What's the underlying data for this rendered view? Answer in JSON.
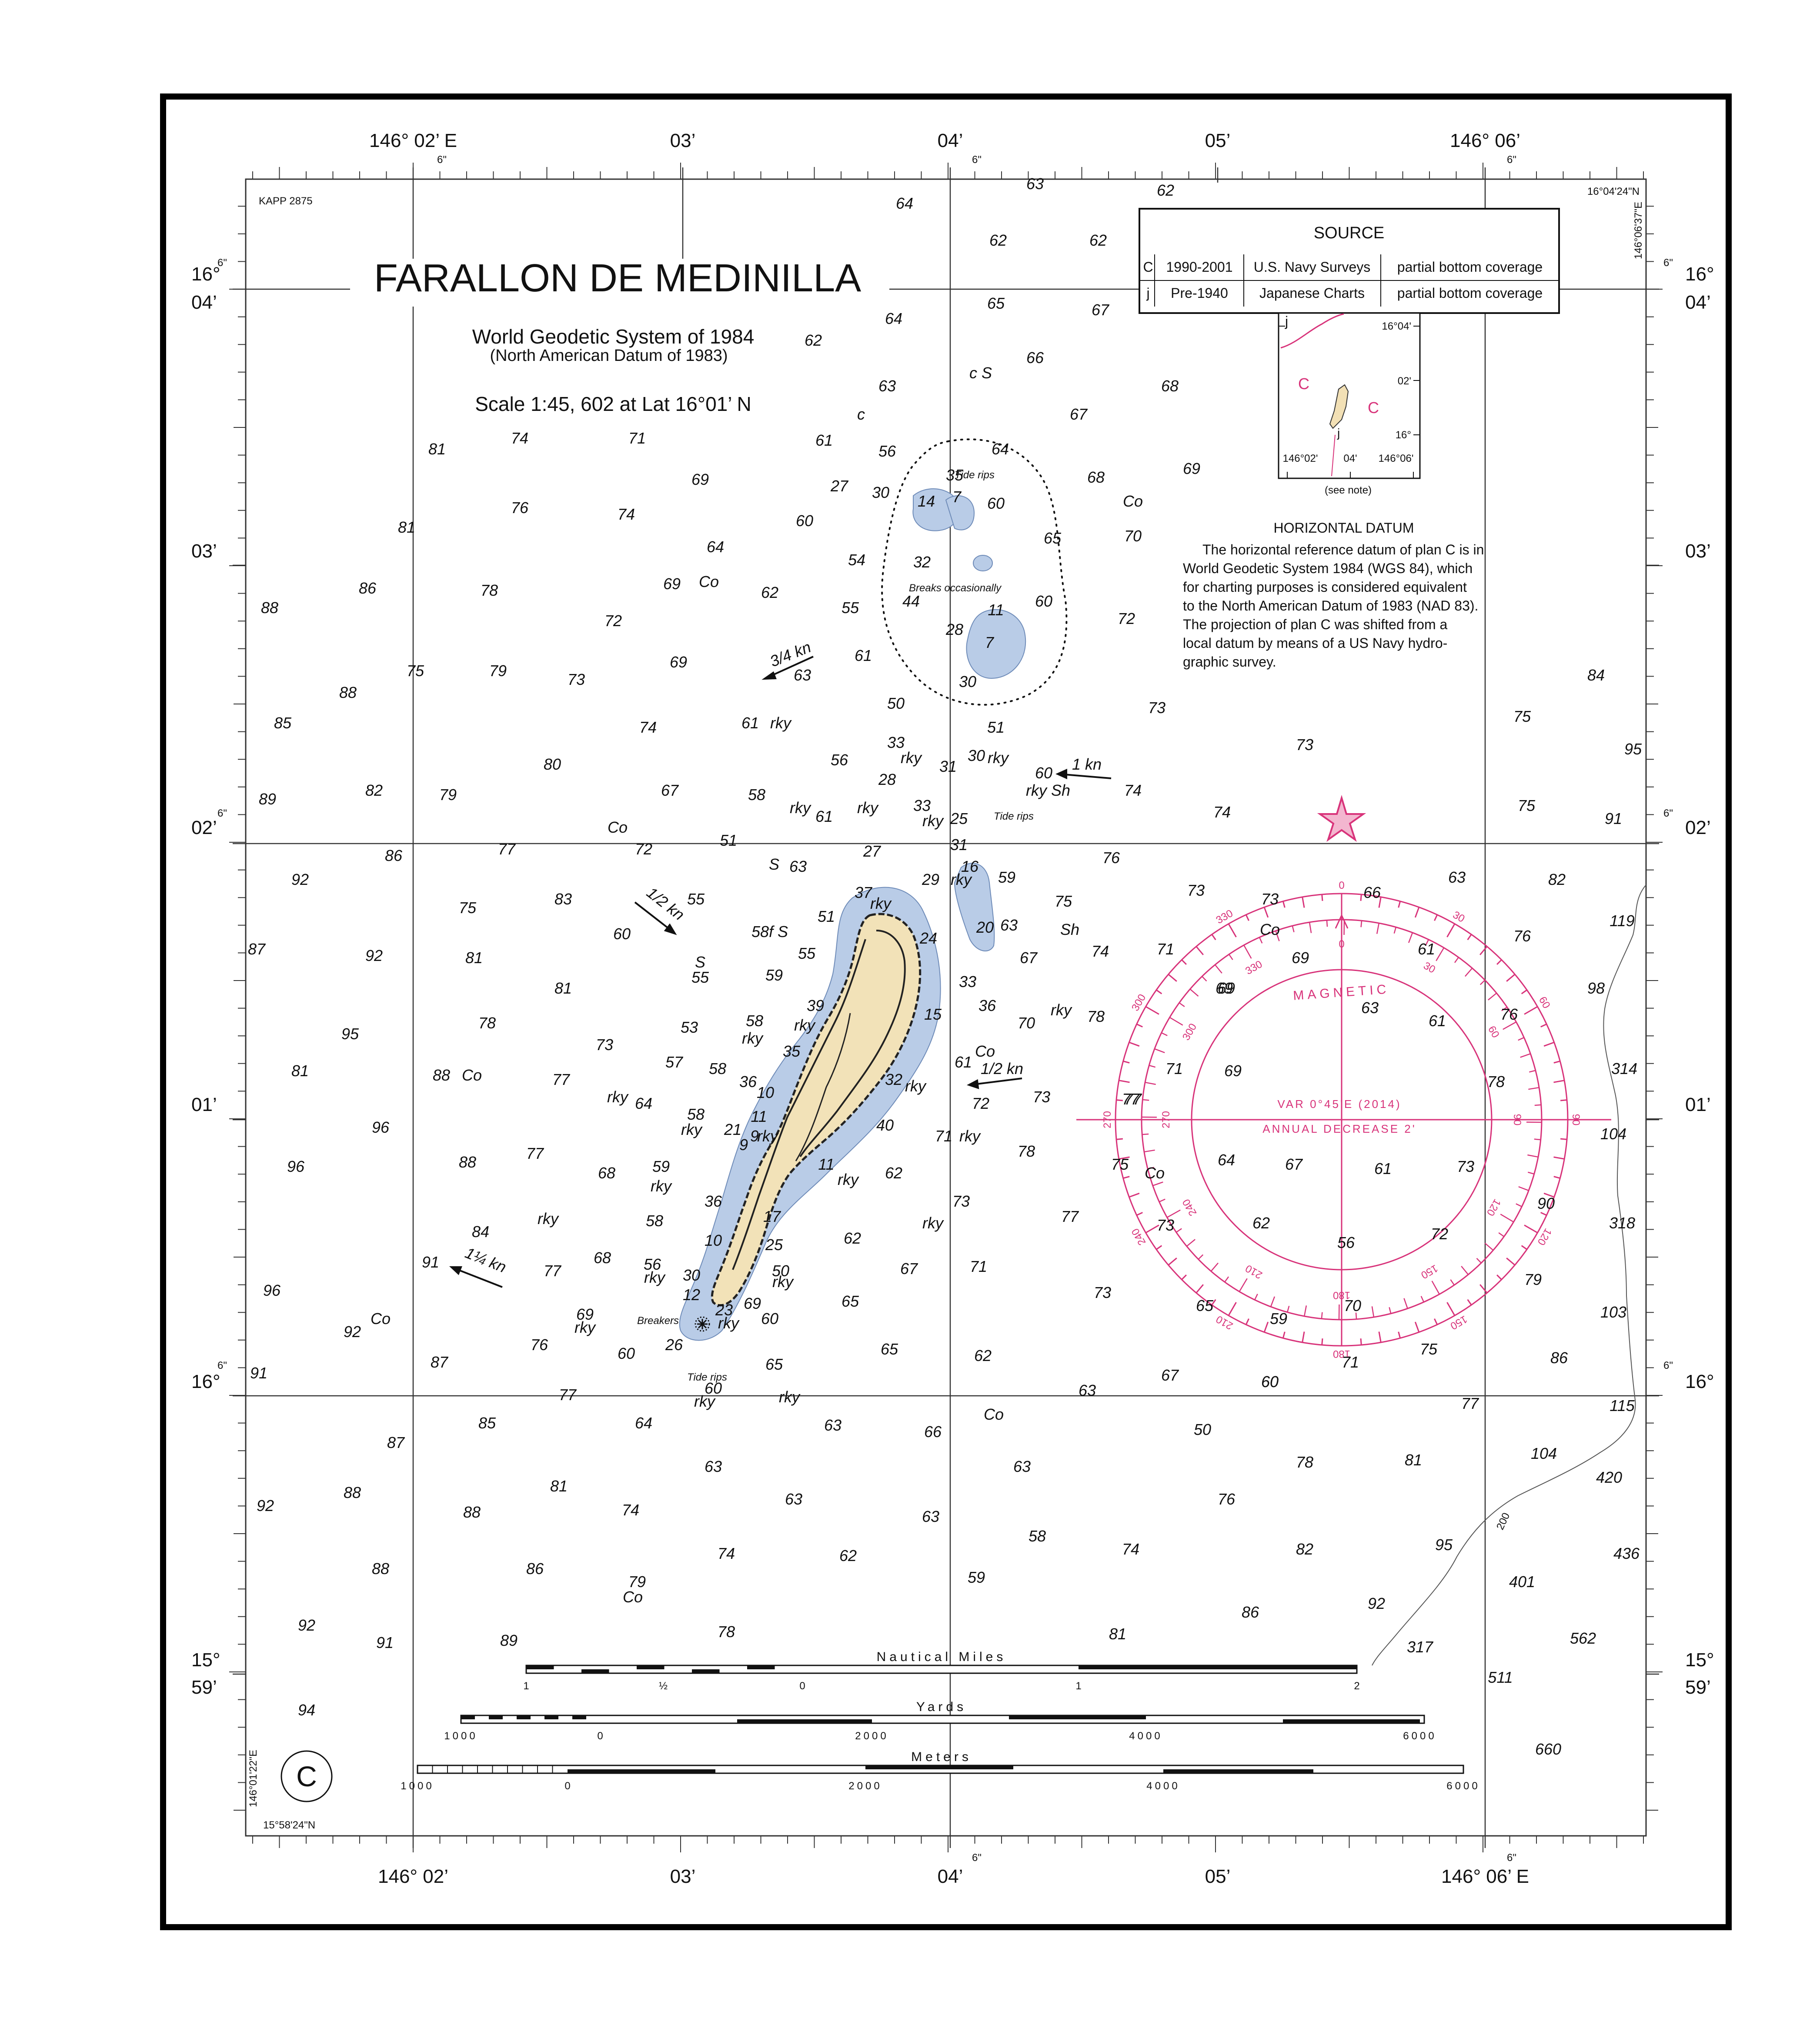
{
  "chart": {
    "code": "KAPP 2875",
    "title": "FARALLON DE MEDINILLA",
    "datum_line": "World Geodetic System of 1984",
    "datum_sub": "(North American Datum of 1983)",
    "scale": "Scale  1:45, 602 at Lat 16°01’ N",
    "plan_letter": "C",
    "corner_ne_lat": "16°04'24\"N",
    "corner_ne_lon": "146°06'37\"E",
    "corner_sw_lat": "15°58'24\"N",
    "corner_sw_lon": "146°01'22\"E"
  },
  "lon_top": [
    "146° 02’ E",
    "03’",
    "04’",
    "05’",
    "146° 06’"
  ],
  "lon_bottom": [
    "146° 02’",
    "03’",
    "04’",
    "05’",
    "146° 06’ E"
  ],
  "lat_left": [
    {
      "deg": "16°",
      "min": "04’"
    },
    {
      "deg": "",
      "min": "03’"
    },
    {
      "deg": "",
      "min": "02’"
    },
    {
      "deg": "",
      "min": "01’"
    },
    {
      "deg": "16°",
      "min": ""
    },
    {
      "deg": "15°",
      "min": "59’"
    }
  ],
  "lat_right": [
    {
      "deg": "16°",
      "min": "04’"
    },
    {
      "deg": "",
      "min": "03’"
    },
    {
      "deg": "",
      "min": "02’"
    },
    {
      "deg": "",
      "min": "01’"
    },
    {
      "deg": "16°",
      "min": ""
    },
    {
      "deg": "15°",
      "min": "59’"
    }
  ],
  "tick_six": "6\"",
  "source": {
    "title": "SOURCE",
    "rows": [
      {
        "code": "C",
        "date": "1990-2001",
        "agency": "U.S. Navy Surveys",
        "coverage": "partial bottom coverage"
      },
      {
        "code": "j",
        "date": "Pre-1940",
        "agency": "Japanese Charts",
        "coverage": "partial bottom coverage"
      }
    ],
    "inset": {
      "lat_labels": [
        "16°04'",
        "02'",
        "16°"
      ],
      "lon_labels": [
        "146°02'",
        "04'",
        "146°06'"
      ],
      "zone_labels": [
        "j",
        "C",
        "C",
        "j"
      ],
      "note": "(see note)"
    }
  },
  "horizontal_datum": {
    "title": "HORIZONTAL DATUM",
    "lines": [
      "The horizontal reference datum of plan C is in",
      "World Geodetic System 1984 (WGS 84), which",
      "for charting purposes is considered equivalent",
      "to the North American Datum of 1983  (NAD 83).",
      "The projection of plan C was shifted from a",
      "local datum by means of a US Navy hydro-",
      "graphic survey."
    ]
  },
  "compass": {
    "magnetic": "MAGNETIC",
    "variation": "VAR  0°45'E  (2014)",
    "annual": "ANNUAL DECREASE 2'"
  },
  "currents": [
    "3/4 kn",
    "1 kn",
    "1/2 kn",
    "1/2 kn",
    "1¼ kn"
  ],
  "annotations": [
    "Tide rips",
    "Breaks occasionally",
    "Tide rips",
    "Breakers",
    "Tide rips"
  ],
  "contour_label": "200",
  "scales": {
    "nautical_miles": {
      "title": "Nautical Miles",
      "labels": [
        "1",
        "½",
        "0",
        "1",
        "2"
      ]
    },
    "yards": {
      "title": "Yards",
      "labels": [
        "1000",
        "0",
        "2000",
        "4000",
        "6000"
      ]
    },
    "meters": {
      "title": "Meters",
      "labels": [
        "1000",
        "0",
        "2000",
        "4000",
        "6000"
      ]
    }
  },
  "soundings": [
    [
      "64",
      2080,
      480
    ],
    [
      "63",
      2380,
      435
    ],
    [
      "62",
      2680,
      450
    ],
    [
      "62",
      2295,
      565
    ],
    [
      "62",
      2525,
      565
    ],
    [
      "64",
      2055,
      745
    ],
    [
      "65",
      2290,
      710
    ],
    [
      "67",
      2530,
      725
    ],
    [
      "62",
      1870,
      795
    ],
    [
      "63",
      2040,
      900
    ],
    [
      "66",
      2380,
      835
    ],
    [
      "68",
      2690,
      900
    ],
    [
      "67",
      2480,
      965
    ],
    [
      "c  S",
      2255,
      870
    ],
    [
      "c",
      1980,
      965
    ],
    [
      "81",
      1005,
      1045
    ],
    [
      "74",
      1195,
      1020
    ],
    [
      "71",
      1465,
      1020
    ],
    [
      "61",
      1895,
      1025
    ],
    [
      "56",
      2040,
      1050
    ],
    [
      "64",
      2300,
      1045
    ],
    [
      "68",
      2520,
      1110
    ],
    [
      "69",
      2740,
      1090
    ],
    [
      "Co",
      2605,
      1165
    ],
    [
      "70",
      2605,
      1245
    ],
    [
      "69",
      1610,
      1115
    ],
    [
      "27",
      1930,
      1130
    ],
    [
      "30",
      2025,
      1145
    ],
    [
      "35",
      2195,
      1105
    ],
    [
      "7",
      2200,
      1155
    ],
    [
      "14",
      2130,
      1165
    ],
    [
      "60",
      2290,
      1170
    ],
    [
      "76",
      1195,
      1180
    ],
    [
      "74",
      1440,
      1195
    ],
    [
      "60",
      1850,
      1210
    ],
    [
      "65",
      2420,
      1250
    ],
    [
      "81",
      935,
      1225
    ],
    [
      "64",
      1645,
      1270
    ],
    [
      "54",
      1970,
      1300
    ],
    [
      "32",
      2120,
      1305
    ],
    [
      "86",
      845,
      1365
    ],
    [
      "78",
      1125,
      1370
    ],
    [
      "69",
      1545,
      1355
    ],
    [
      "Co",
      1630,
      1350
    ],
    [
      "62",
      1770,
      1375
    ],
    [
      "44",
      2095,
      1395
    ],
    [
      "11",
      2290,
      1415
    ],
    [
      "60",
      2400,
      1395
    ],
    [
      "55",
      1955,
      1410
    ],
    [
      "72",
      2590,
      1435
    ],
    [
      "88",
      620,
      1410
    ],
    [
      "72",
      1410,
      1440
    ],
    [
      "28",
      2195,
      1460
    ],
    [
      "7",
      2275,
      1490
    ],
    [
      "61",
      1985,
      1520
    ],
    [
      "69",
      1560,
      1535
    ],
    [
      "63",
      1845,
      1565
    ],
    [
      "75",
      955,
      1555
    ],
    [
      "79",
      1145,
      1555
    ],
    [
      "73",
      1325,
      1575
    ],
    [
      "30",
      2225,
      1580
    ],
    [
      "50",
      2060,
      1630
    ],
    [
      "88",
      800,
      1605
    ],
    [
      "85",
      650,
      1675
    ],
    [
      "74",
      1490,
      1685
    ],
    [
      "61",
      1725,
      1675
    ],
    [
      "rky",
      1795,
      1675
    ],
    [
      "51",
      2290,
      1685
    ],
    [
      "73",
      2660,
      1640
    ],
    [
      "73",
      3000,
      1725
    ],
    [
      "84",
      3670,
      1565
    ],
    [
      "75",
      3500,
      1660
    ],
    [
      "95",
      3755,
      1735
    ],
    [
      "33",
      2060,
      1720
    ],
    [
      "rky",
      2095,
      1755
    ],
    [
      "31",
      2180,
      1775
    ],
    [
      "30",
      2245,
      1750
    ],
    [
      "rky",
      2295,
      1755
    ],
    [
      "80",
      1270,
      1770
    ],
    [
      "56",
      1930,
      1760
    ],
    [
      "60",
      2400,
      1790
    ],
    [
      "rky Sh",
      2410,
      1830
    ],
    [
      "74",
      2605,
      1830
    ],
    [
      "89",
      615,
      1850
    ],
    [
      "82",
      860,
      1830
    ],
    [
      "79",
      1030,
      1840
    ],
    [
      "67",
      1540,
      1830
    ],
    [
      "58",
      1740,
      1840
    ],
    [
      "rky",
      1840,
      1870
    ],
    [
      "61",
      1895,
      1890
    ],
    [
      "28",
      2040,
      1805
    ],
    [
      "rky",
      1995,
      1870
    ],
    [
      "33",
      2120,
      1865
    ],
    [
      "rky",
      2145,
      1900
    ],
    [
      "25",
      2205,
      1895
    ],
    [
      "74",
      2810,
      1880
    ],
    [
      "75",
      3510,
      1865
    ],
    [
      "91",
      3710,
      1895
    ],
    [
      "Co",
      1420,
      1915
    ],
    [
      "51",
      1675,
      1945
    ],
    [
      "77",
      1165,
      1965
    ],
    [
      "72",
      1480,
      1965
    ],
    [
      "86",
      905,
      1980
    ],
    [
      "S",
      1780,
      2000
    ],
    [
      "63",
      1835,
      2005
    ],
    [
      "27",
      2005,
      1970
    ],
    [
      "31",
      2205,
      1955
    ],
    [
      "16",
      2230,
      2005
    ],
    [
      "rky",
      2210,
      2035
    ],
    [
      "59",
      2315,
      2030
    ],
    [
      "29",
      2140,
      2035
    ],
    [
      "76",
      2555,
      1985
    ],
    [
      "73",
      2750,
      2060
    ],
    [
      "63",
      3350,
      2030
    ],
    [
      "82",
      3580,
      2035
    ],
    [
      "92",
      690,
      2035
    ],
    [
      "37",
      1985,
      2065
    ],
    [
      "rky",
      2025,
      2090
    ],
    [
      "75",
      1075,
      2100
    ],
    [
      "83",
      1295,
      2080
    ],
    [
      "55",
      1600,
      2080
    ],
    [
      "51",
      1900,
      2120
    ],
    [
      "24",
      2135,
      2170
    ],
    [
      "20",
      2265,
      2145
    ],
    [
      "63",
      2320,
      2140
    ],
    [
      "75",
      2445,
      2085
    ],
    [
      "Sh",
      2460,
      2150
    ],
    [
      "119",
      3730,
      2130
    ],
    [
      "60",
      1430,
      2160
    ],
    [
      "58f  S",
      1770,
      2155
    ],
    [
      "55",
      1855,
      2205
    ],
    [
      "74",
      2530,
      2200
    ],
    [
      "71",
      2680,
      2195
    ],
    [
      "87",
      590,
      2195
    ],
    [
      "92",
      860,
      2210
    ],
    [
      "81",
      1090,
      2215
    ],
    [
      "S",
      1610,
      2225
    ],
    [
      "55",
      1610,
      2260
    ],
    [
      "59",
      1780,
      2255
    ],
    [
      "33",
      2225,
      2270
    ],
    [
      "67",
      2365,
      2215
    ],
    [
      "76",
      3500,
      2165
    ],
    [
      "81",
      1295,
      2285
    ],
    [
      "36",
      2270,
      2325
    ],
    [
      "69",
      2820,
      2285
    ],
    [
      "98",
      3670,
      2285
    ],
    [
      "39",
      1875,
      2325
    ],
    [
      "rky",
      2440,
      2335
    ],
    [
      "78",
      2520,
      2350
    ],
    [
      "58",
      1735,
      2360
    ],
    [
      "rky",
      1850,
      2370
    ],
    [
      "15",
      2145,
      2345
    ],
    [
      "70",
      2360,
      2365
    ],
    [
      "78",
      1120,
      2365
    ],
    [
      "53",
      1585,
      2375
    ],
    [
      "rky",
      1730,
      2400
    ],
    [
      "76",
      3470,
      2345
    ],
    [
      "95",
      805,
      2390
    ],
    [
      "73",
      1390,
      2415
    ],
    [
      "35",
      1820,
      2430
    ],
    [
      "Co",
      2265,
      2430
    ],
    [
      "61",
      2215,
      2455
    ],
    [
      "57",
      1550,
      2455
    ],
    [
      "58",
      1650,
      2470
    ],
    [
      "32",
      2055,
      2495
    ],
    [
      "rky",
      2105,
      2510
    ],
    [
      "314",
      3735,
      2470
    ],
    [
      "81",
      690,
      2475
    ],
    [
      "88",
      1015,
      2485
    ],
    [
      "Co",
      1085,
      2485
    ],
    [
      "77",
      1290,
      2495
    ],
    [
      "36",
      1720,
      2500
    ],
    [
      "rky",
      1420,
      2535
    ],
    [
      "64",
      1480,
      2550
    ],
    [
      "10",
      1760,
      2525
    ],
    [
      "72",
      2255,
      2550
    ],
    [
      "73",
      2395,
      2535
    ],
    [
      "77",
      2605,
      2540
    ],
    [
      "58",
      1600,
      2575
    ],
    [
      "rky",
      1590,
      2610
    ],
    [
      "11",
      1745,
      2580
    ],
    [
      "21",
      1685,
      2610
    ],
    [
      "9",
      1735,
      2625
    ],
    [
      "rky",
      1765,
      2625
    ],
    [
      "40",
      2035,
      2600
    ],
    [
      "71",
      2170,
      2625
    ],
    [
      "rky",
      2230,
      2625
    ],
    [
      "96",
      875,
      2605
    ],
    [
      "104",
      3710,
      2620
    ],
    [
      "9",
      1710,
      2645
    ],
    [
      "78",
      2360,
      2660
    ],
    [
      "77",
      1230,
      2665
    ],
    [
      "88",
      1075,
      2685
    ],
    [
      "96",
      680,
      2695
    ],
    [
      "59",
      1520,
      2695
    ],
    [
      "11",
      1900,
      2690
    ],
    [
      "rky",
      1950,
      2725
    ],
    [
      "62",
      2055,
      2710
    ],
    [
      "75",
      2575,
      2690
    ],
    [
      "Co",
      2655,
      2710
    ],
    [
      "68",
      1395,
      2710
    ],
    [
      "rky",
      1520,
      2740
    ],
    [
      "36",
      1640,
      2775
    ],
    [
      "73",
      2210,
      2775
    ],
    [
      "90",
      3555,
      2780
    ],
    [
      "17",
      1775,
      2810
    ],
    [
      "rky",
      1260,
      2815
    ],
    [
      "58",
      1505,
      2820
    ],
    [
      "77",
      2460,
      2810
    ],
    [
      "318",
      3730,
      2825
    ],
    [
      "84",
      1105,
      2845
    ],
    [
      "62",
      1960,
      2860
    ],
    [
      "rky",
      2145,
      2825
    ],
    [
      "10",
      1640,
      2865
    ],
    [
      "25",
      1780,
      2875
    ],
    [
      "91",
      990,
      2915
    ],
    [
      "77",
      1270,
      2935
    ],
    [
      "68",
      1385,
      2905
    ],
    [
      "56",
      1500,
      2920
    ],
    [
      "rky",
      1505,
      2950
    ],
    [
      "30",
      1590,
      2945
    ],
    [
      "50",
      1795,
      2935
    ],
    [
      "67",
      2090,
      2930
    ],
    [
      "71",
      2250,
      2925
    ],
    [
      "79",
      3525,
      2955
    ],
    [
      "12",
      1590,
      2990
    ],
    [
      "rky",
      1800,
      2960
    ],
    [
      "69",
      1730,
      3010
    ],
    [
      "23",
      1665,
      3025
    ],
    [
      "rky",
      1675,
      3055
    ],
    [
      "65",
      1955,
      3005
    ],
    [
      "73",
      2535,
      2985
    ],
    [
      "103",
      3710,
      3030
    ],
    [
      "96",
      625,
      2980
    ],
    [
      "69",
      1345,
      3035
    ],
    [
      "rky",
      1345,
      3065
    ],
    [
      "60",
      1770,
      3045
    ],
    [
      "Co",
      875,
      3045
    ],
    [
      "92",
      810,
      3075
    ],
    [
      "76",
      1240,
      3105
    ],
    [
      "26",
      1550,
      3105
    ],
    [
      "60",
      1440,
      3125
    ],
    [
      "65",
      2045,
      3115
    ],
    [
      "62",
      2260,
      3130
    ],
    [
      "87",
      1010,
      3145
    ],
    [
      "86",
      3585,
      3135
    ],
    [
      "91",
      595,
      3170
    ],
    [
      "65",
      1780,
      3150
    ],
    [
      "67",
      2690,
      3175
    ],
    [
      "60",
      2920,
      3190
    ],
    [
      "60",
      1640,
      3205
    ],
    [
      "rky",
      1620,
      3235
    ],
    [
      "77",
      1305,
      3220
    ],
    [
      "rky",
      1815,
      3225
    ],
    [
      "63",
      2500,
      3210
    ],
    [
      "77",
      3380,
      3240
    ],
    [
      "115",
      3730,
      3245
    ],
    [
      "85",
      1120,
      3285
    ],
    [
      "64",
      1480,
      3285
    ],
    [
      "63",
      1915,
      3290
    ],
    [
      "Co",
      2285,
      3265
    ],
    [
      "66",
      2145,
      3305
    ],
    [
      "50",
      2765,
      3300
    ],
    [
      "87",
      910,
      3330
    ],
    [
      "81",
      3250,
      3370
    ],
    [
      "104",
      3550,
      3355
    ],
    [
      "78",
      3000,
      3375
    ],
    [
      "63",
      2350,
      3385
    ],
    [
      "63",
      1640,
      3385
    ],
    [
      "81",
      1285,
      3430
    ],
    [
      "88",
      810,
      3445
    ],
    [
      "420",
      3700,
      3410
    ],
    [
      "92",
      610,
      3475
    ],
    [
      "63",
      1825,
      3460
    ],
    [
      "74",
      1450,
      3485
    ],
    [
      "76",
      2820,
      3460
    ],
    [
      "88",
      1085,
      3490
    ],
    [
      "63",
      2140,
      3500
    ],
    [
      "58",
      2385,
      3545
    ],
    [
      "95",
      3320,
      3565
    ],
    [
      "436",
      3740,
      3585
    ],
    [
      "74",
      1670,
      3585
    ],
    [
      "62",
      1950,
      3590
    ],
    [
      "74",
      2600,
      3575
    ],
    [
      "82",
      3000,
      3575
    ],
    [
      "88",
      875,
      3620
    ],
    [
      "86",
      1230,
      3620
    ],
    [
      "79",
      1465,
      3650
    ],
    [
      "Co",
      1455,
      3685
    ],
    [
      "59",
      2245,
      3640
    ],
    [
      "401",
      3500,
      3650
    ],
    [
      "92",
      3165,
      3700
    ],
    [
      "86",
      2875,
      3720
    ],
    [
      "92",
      705,
      3750
    ],
    [
      "78",
      1670,
      3765
    ],
    [
      "81",
      2570,
      3770
    ],
    [
      "562",
      3640,
      3780
    ],
    [
      "317",
      3265,
      3800
    ],
    [
      "91",
      885,
      3790
    ],
    [
      "89",
      1170,
      3785
    ],
    [
      "511",
      3450,
      3870
    ],
    [
      "94",
      705,
      3945
    ],
    [
      "660",
      3560,
      4035
    ],
    [
      "67",
      2975,
      2690
    ],
    [
      "61",
      3180,
      2700
    ],
    [
      "73",
      3370,
      2695
    ],
    [
      "64",
      2820,
      2680
    ],
    [
      "62",
      2900,
      2825
    ],
    [
      "56",
      3095,
      2870
    ],
    [
      "72",
      3310,
      2850
    ],
    [
      "73",
      2680,
      2830
    ],
    [
      "65",
      2770,
      3015
    ],
    [
      "59",
      2940,
      3045
    ],
    [
      "70",
      3110,
      3015
    ],
    [
      "75",
      3285,
      3115
    ],
    [
      "71",
      3105,
      3145
    ],
    [
      "60",
      2920,
      3190
    ],
    [
      "66",
      3155,
      2065
    ],
    [
      "61",
      3280,
      2195
    ],
    [
      "63",
      3150,
      2330
    ],
    [
      "61",
      3305,
      2360
    ],
    [
      "69",
      2990,
      2215
    ],
    [
      "69",
      2815,
      2285
    ],
    [
      "73",
      2920,
      2080
    ],
    [
      "Co",
      2920,
      2150
    ],
    [
      "71",
      2700,
      2470
    ],
    [
      "69",
      2835,
      2475
    ],
    [
      "78",
      3440,
      2500
    ],
    [
      "77",
      2600,
      2540
    ]
  ]
}
